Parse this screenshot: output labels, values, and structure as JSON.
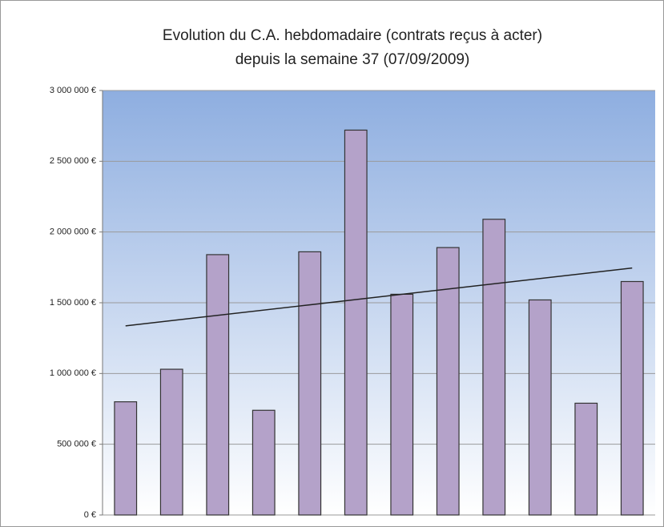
{
  "chart_data": {
    "type": "bar",
    "title": "Evolution du C.A. hebdomadaire  (contrats reçus à acter)",
    "subtitle": "depuis la semaine 37 (07/09/2009)",
    "categories": [
      null,
      null,
      null,
      null,
      null,
      null,
      null,
      null,
      null,
      null,
      null,
      null
    ],
    "values": [
      800000,
      1030000,
      1840000,
      740000,
      1860000,
      2720000,
      1560000,
      1890000,
      2090000,
      1520000,
      790000,
      1650000
    ],
    "color": "#b4a2c9",
    "trendline": true,
    "ylim": [
      0,
      3000000
    ],
    "yticks": [
      {
        "value": 0,
        "label": "0 €"
      },
      {
        "value": 500000,
        "label": "500 000 €"
      },
      {
        "value": 1000000,
        "label": "1 000 000 €"
      },
      {
        "value": 1500000,
        "label": "1 500 000 €"
      },
      {
        "value": 2000000,
        "label": "2 000 000 €"
      },
      {
        "value": 2500000,
        "label": "2 500 000 €"
      },
      {
        "value": 3000000,
        "label": "3 000 000 €"
      }
    ],
    "grid": true
  }
}
